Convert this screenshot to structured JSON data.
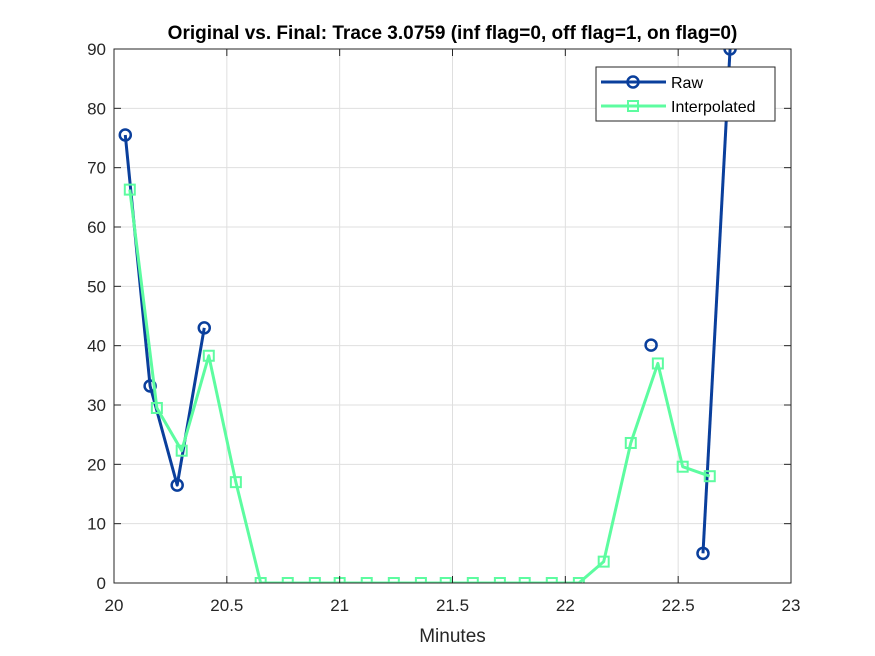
{
  "chart_data": {
    "type": "line",
    "title": "Original vs. Final: Trace 3.0759 (inf flag=0, off flag=1, on flag=0)",
    "xlabel": "Minutes",
    "ylabel": "",
    "xlim": [
      20,
      23
    ],
    "ylim": [
      0,
      90
    ],
    "xticks": [
      20,
      20.5,
      21,
      21.5,
      22,
      22.5,
      23
    ],
    "xtick_labels": [
      "20",
      "20.5",
      "21",
      "21.5",
      "22",
      "22.5",
      "23"
    ],
    "yticks": [
      0,
      10,
      20,
      30,
      40,
      50,
      60,
      70,
      80,
      90
    ],
    "ytick_labels": [
      "0",
      "10",
      "20",
      "30",
      "40",
      "50",
      "60",
      "70",
      "80",
      "90"
    ],
    "grid": true,
    "legend_position": "top-right",
    "series": [
      {
        "name": "Raw",
        "color": "#0a3f9c",
        "marker": "circle",
        "segments": [
          {
            "x": [
              20.05,
              20.16,
              20.28,
              20.4
            ],
            "y": [
              75.5,
              33.2,
              16.5,
              43.0
            ]
          },
          {
            "x": [
              22.38
            ],
            "y": [
              40.1
            ]
          },
          {
            "x": [
              22.61,
              22.73
            ],
            "y": [
              5.0,
              90
            ]
          }
        ]
      },
      {
        "name": "Interpolated",
        "color": "#5dfca0",
        "marker": "square",
        "segments": [
          {
            "x": [
              20.07,
              20.19,
              20.3,
              20.42,
              20.54,
              20.65,
              20.77,
              20.89,
              21.0,
              21.12,
              21.24,
              21.36,
              21.47,
              21.59,
              21.71,
              21.82,
              21.94,
              22.06,
              22.17,
              22.29,
              22.41,
              22.52,
              22.64
            ],
            "y": [
              66.3,
              29.5,
              22.3,
              38.3,
              17.0,
              0,
              0,
              0,
              0,
              0,
              0,
              0,
              0,
              0,
              0,
              0,
              0,
              0,
              3.6,
              23.6,
              37.0,
              19.6,
              18.0
            ]
          }
        ]
      }
    ]
  }
}
